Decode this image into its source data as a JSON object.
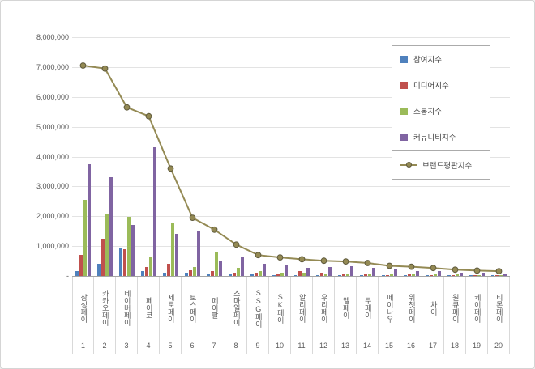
{
  "chart_data": {
    "type": "bar",
    "title": "",
    "xlabel": "",
    "ylabel": "",
    "ylim": [
      0,
      8000000
    ],
    "ytick_step": 1000000,
    "ytick_labels": [
      "-",
      "1,000,000",
      "2,000,000",
      "3,000,000",
      "4,000,000",
      "5,000,000",
      "6,000,000",
      "7,000,000",
      "8,000,000"
    ],
    "grid": true,
    "legend_position": "right-top",
    "categories": [
      "삼성페이",
      "카카오페이",
      "네이버페이",
      "페이코",
      "제로페이",
      "토스페이",
      "페이팔",
      "스마일페이",
      "SSG페이",
      "SK페이",
      "알리페이",
      "우리페이",
      "엘페이",
      "쿠페이",
      "페이나우",
      "위챗페이",
      "차이",
      "원큐페이",
      "케이페이",
      "티몬페이"
    ],
    "ranks": [
      "1",
      "2",
      "3",
      "4",
      "5",
      "6",
      "7",
      "8",
      "9",
      "10",
      "11",
      "12",
      "13",
      "14",
      "15",
      "16",
      "17",
      "18",
      "19",
      "20"
    ],
    "series": [
      {
        "name": "참여지수",
        "kind": "bar",
        "color": "#4F81BD",
        "values": [
          150000,
          400000,
          950000,
          150000,
          100000,
          100000,
          80000,
          60000,
          50000,
          40000,
          30000,
          30000,
          25000,
          25000,
          20000,
          20000,
          15000,
          10000,
          10000,
          10000
        ]
      },
      {
        "name": "미디어지수",
        "kind": "bar",
        "color": "#C0504D",
        "values": [
          700000,
          1250000,
          900000,
          300000,
          400000,
          200000,
          150000,
          120000,
          100000,
          80000,
          150000,
          100000,
          60000,
          60000,
          40000,
          50000,
          40000,
          30000,
          30000,
          25000
        ]
      },
      {
        "name": "소통지수",
        "kind": "bar",
        "color": "#9BBB59",
        "values": [
          2550000,
          2100000,
          1980000,
          650000,
          1750000,
          300000,
          820000,
          280000,
          150000,
          120000,
          100000,
          80000,
          70000,
          90000,
          60000,
          70000,
          60000,
          50000,
          40000,
          35000
        ]
      },
      {
        "name": "커뮤니티지수",
        "kind": "bar",
        "color": "#8064A2",
        "values": [
          3750000,
          3300000,
          1700000,
          4300000,
          1400000,
          1480000,
          500000,
          620000,
          420000,
          380000,
          280000,
          300000,
          330000,
          260000,
          220000,
          170000,
          150000,
          120000,
          100000,
          90000
        ]
      },
      {
        "name": "브랜드평판지수",
        "kind": "line",
        "color": "#948A54",
        "marker_stroke": "#5F5A3C",
        "values": [
          7050000,
          6950000,
          5650000,
          5350000,
          3600000,
          1950000,
          1550000,
          1050000,
          700000,
          620000,
          560000,
          510000,
          485000,
          435000,
          340000,
          310000,
          265000,
          210000,
          180000,
          160000
        ]
      }
    ]
  }
}
